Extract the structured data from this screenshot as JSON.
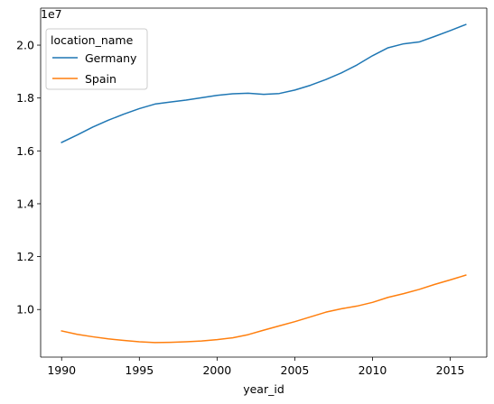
{
  "chart_data": {
    "type": "line",
    "xlabel": "year_id",
    "ylabel": "",
    "y_offset_text": "1e7",
    "xlim": [
      1988.65,
      2017.35
    ],
    "ylim": [
      8200000,
      21400000
    ],
    "xticks": [
      1990,
      1995,
      2000,
      2005,
      2010,
      2015
    ],
    "xtick_labels": [
      "1990",
      "1995",
      "2000",
      "2005",
      "2010",
      "2015"
    ],
    "yticks": [
      10000000,
      12000000,
      14000000,
      16000000,
      18000000,
      20000000
    ],
    "ytick_labels": [
      "1.0",
      "1.2",
      "1.4",
      "1.6",
      "1.8",
      "2.0"
    ],
    "grid": false,
    "legend": {
      "title": "location_name",
      "placement": "top-left"
    },
    "x": [
      1990,
      1991,
      1992,
      1993,
      1994,
      1995,
      1996,
      1997,
      1998,
      1999,
      2000,
      2001,
      2002,
      2003,
      2004,
      2005,
      2006,
      2007,
      2008,
      2009,
      2010,
      2011,
      2012,
      2013,
      2014,
      2015,
      2016
    ],
    "series": [
      {
        "name": "Germany",
        "color": "#1f77b4",
        "values": [
          16320000,
          16600000,
          16900000,
          17160000,
          17390000,
          17600000,
          17770000,
          17850000,
          17920000,
          18010000,
          18100000,
          18160000,
          18180000,
          18140000,
          18170000,
          18300000,
          18480000,
          18700000,
          18950000,
          19250000,
          19600000,
          19900000,
          20050000,
          20120000,
          20330000,
          20550000,
          20780000
        ]
      },
      {
        "name": "Spain",
        "color": "#ff7f0e",
        "values": [
          9190000,
          9060000,
          8970000,
          8890000,
          8830000,
          8780000,
          8750000,
          8760000,
          8780000,
          8810000,
          8860000,
          8930000,
          9050000,
          9220000,
          9380000,
          9540000,
          9720000,
          9900000,
          10030000,
          10130000,
          10270000,
          10460000,
          10600000,
          10760000,
          10950000,
          11120000,
          11300000
        ]
      }
    ]
  }
}
